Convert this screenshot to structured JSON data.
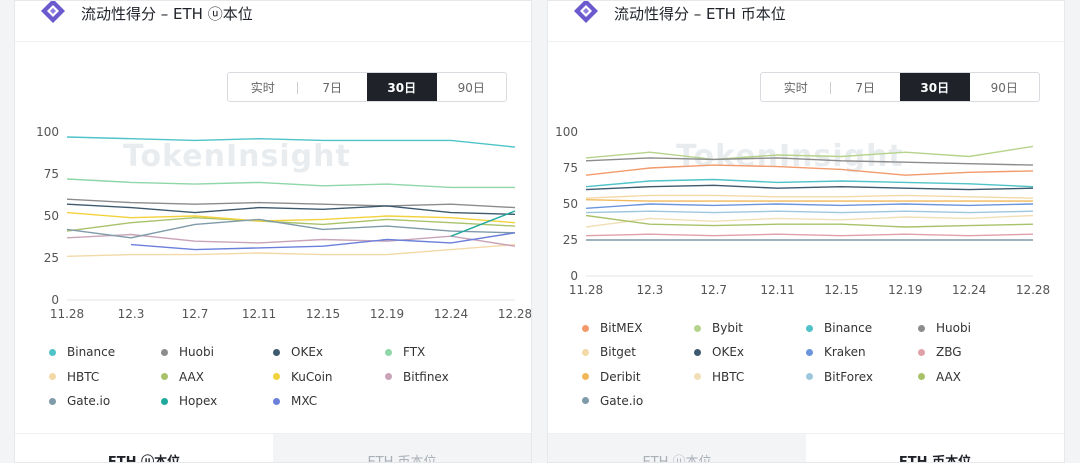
{
  "watermark": "TokenInsight",
  "cards": [
    {
      "title": "流动性得分 – ETH ⓤ本位",
      "range_tabs": [
        "实时",
        "7日",
        "30日",
        "90日"
      ],
      "active_range": 2,
      "bottom_tabs": [
        "ETH ⓤ本位",
        "ETH 币本位"
      ],
      "active_bottom": 0
    },
    {
      "title": "流动性得分 – ETH 币本位",
      "range_tabs": [
        "实时",
        "7日",
        "30日",
        "90日"
      ],
      "active_range": 2,
      "bottom_tabs": [
        "ETH ⓤ本位",
        "ETH 币本位"
      ],
      "active_bottom": 1
    }
  ],
  "chart_data": [
    {
      "type": "line",
      "x": [
        "11.28",
        "12.3",
        "12.7",
        "12.11",
        "12.15",
        "12.19",
        "12.24",
        "12.28"
      ],
      "ylim": [
        0,
        100
      ],
      "yticks": [
        0,
        25,
        50,
        75,
        100
      ],
      "series": [
        {
          "name": "Binance",
          "color": "#4fc3c8",
          "values": [
            97,
            96,
            95,
            96,
            95,
            95,
            95,
            91
          ]
        },
        {
          "name": "Huobi",
          "color": "#8c8c8c",
          "values": [
            60,
            58,
            57,
            58,
            57,
            56,
            57,
            55
          ]
        },
        {
          "name": "OKEx",
          "color": "#3d5a6e",
          "values": [
            57,
            55,
            52,
            55,
            54,
            56,
            52,
            51
          ]
        },
        {
          "name": "FTX",
          "color": "#8fd6a8",
          "values": [
            72,
            70,
            69,
            70,
            68,
            69,
            67,
            67
          ]
        },
        {
          "name": "HBTC",
          "color": "#f2d9a7",
          "values": [
            26,
            27,
            27,
            28,
            27,
            27,
            30,
            33
          ]
        },
        {
          "name": "AAX",
          "color": "#a9c26a",
          "values": [
            41,
            46,
            49,
            47,
            45,
            48,
            46,
            44
          ]
        },
        {
          "name": "KuCoin",
          "color": "#f2d23c",
          "values": [
            52,
            49,
            50,
            47,
            48,
            50,
            49,
            46
          ]
        },
        {
          "name": "Bitfinex",
          "color": "#c9a3b8",
          "values": [
            37,
            39,
            35,
            34,
            36,
            35,
            38,
            32
          ]
        },
        {
          "name": "Gate.io",
          "color": "#7f9aa8",
          "values": [
            42,
            37,
            45,
            48,
            42,
            44,
            41,
            40
          ]
        },
        {
          "name": "Hopex",
          "color": "#1fa89c",
          "values": [
            null,
            null,
            null,
            null,
            null,
            null,
            38,
            53
          ]
        },
        {
          "name": "MXC",
          "color": "#6b7fdb",
          "values": [
            null,
            33,
            30,
            31,
            32,
            36,
            34,
            40
          ]
        }
      ]
    },
    {
      "type": "line",
      "x": [
        "11.28",
        "12.3",
        "12.7",
        "12.11",
        "12.15",
        "12.19",
        "12.24",
        "12.28"
      ],
      "ylim": [
        0,
        100
      ],
      "yticks": [
        0,
        25,
        50,
        75,
        100
      ],
      "series": [
        {
          "name": "BitMEX",
          "color": "#f29a6b",
          "values": [
            70,
            75,
            77,
            76,
            74,
            70,
            72,
            73
          ]
        },
        {
          "name": "Bybit",
          "color": "#b6d38b",
          "values": [
            82,
            86,
            81,
            84,
            83,
            86,
            83,
            90
          ]
        },
        {
          "name": "Binance",
          "color": "#4fc3c8",
          "values": [
            62,
            66,
            67,
            65,
            66,
            65,
            64,
            62
          ]
        },
        {
          "name": "Huobi",
          "color": "#8c8c8c",
          "values": [
            80,
            82,
            81,
            82,
            80,
            79,
            78,
            77
          ]
        },
        {
          "name": "Bitget",
          "color": "#f2d9a7",
          "values": [
            54,
            56,
            56,
            55,
            55,
            56,
            55,
            54
          ]
        },
        {
          "name": "OKEx",
          "color": "#3d5a6e",
          "values": [
            60,
            62,
            63,
            61,
            62,
            61,
            60,
            61
          ]
        },
        {
          "name": "Kraken",
          "color": "#6b95db",
          "values": [
            47,
            50,
            49,
            50,
            49,
            50,
            49,
            50
          ]
        },
        {
          "name": "ZBG",
          "color": "#e0a0a8",
          "values": [
            28,
            29,
            28,
            29,
            28,
            29,
            28,
            29
          ]
        },
        {
          "name": "Deribit",
          "color": "#f0b85a",
          "values": [
            53,
            52,
            52,
            52,
            52,
            52,
            52,
            52
          ]
        },
        {
          "name": "HBTC",
          "color": "#f2dfb8",
          "values": [
            34,
            40,
            38,
            40,
            39,
            41,
            40,
            42
          ]
        },
        {
          "name": "BitForex",
          "color": "#9ec7de",
          "values": [
            44,
            45,
            44,
            45,
            44,
            45,
            44,
            45
          ]
        },
        {
          "name": "AAX",
          "color": "#a9c26a",
          "values": [
            42,
            36,
            35,
            36,
            36,
            34,
            35,
            36
          ]
        },
        {
          "name": "Gate.io",
          "color": "#7f9aa8",
          "values": [
            25,
            25,
            25,
            25,
            25,
            25,
            25,
            25
          ]
        }
      ]
    }
  ]
}
